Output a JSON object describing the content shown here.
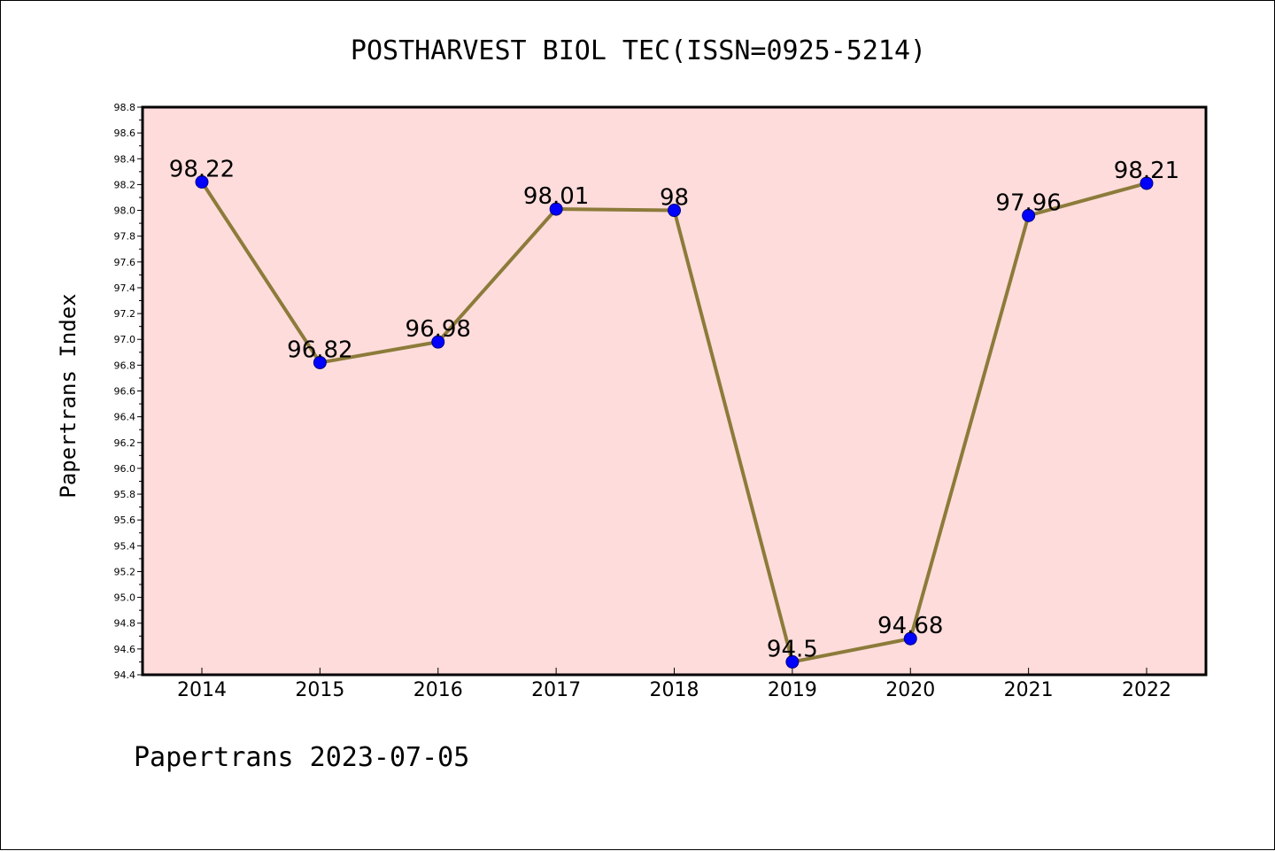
{
  "colors": {
    "plot_background": "#fedcdb",
    "line": "#8c7b3a",
    "marker_fill": "#0000ff",
    "marker_edge": "#000080",
    "axis": "#000000"
  },
  "footer": "Papertrans 2023-07-05",
  "chart_data": {
    "type": "line",
    "title": "POSTHARVEST BIOL TEC(ISSN=0925-5214)",
    "xlabel": "",
    "ylabel": "Papertrans Index",
    "x": [
      "2014",
      "2015",
      "2016",
      "2017",
      "2018",
      "2019",
      "2020",
      "2021",
      "2022"
    ],
    "series": [
      {
        "values": [
          98.22,
          96.82,
          96.98,
          98.01,
          98,
          94.5,
          94.68,
          97.96,
          98.21
        ],
        "data_labels": [
          "98.22",
          "96.82",
          "96.98",
          "98.01",
          "98",
          "94.5",
          "94.68",
          "97.96",
          "98.21"
        ]
      }
    ],
    "ylim": [
      94.4,
      98.8
    ],
    "yticks": [
      "94.4",
      "94.6",
      "94.8",
      "95.0",
      "95.2",
      "95.4",
      "95.6",
      "95.8",
      "96.0",
      "96.2",
      "96.4",
      "96.6",
      "96.8",
      "97.0",
      "97.2",
      "97.4",
      "97.6",
      "97.8",
      "98.0",
      "98.2",
      "98.4",
      "98.6",
      "98.8"
    ],
    "grid": false,
    "legend": "none"
  }
}
